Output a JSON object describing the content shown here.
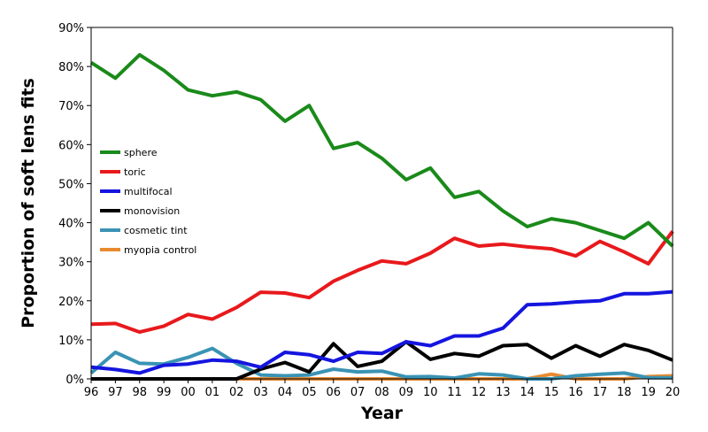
{
  "chart_data": {
    "type": "line",
    "xlabel": "Year",
    "ylabel": "Proportion of soft lens fits",
    "categories": [
      "96",
      "97",
      "98",
      "99",
      "00",
      "01",
      "02",
      "03",
      "04",
      "05",
      "06",
      "07",
      "08",
      "09",
      "10",
      "11",
      "12",
      "13",
      "14",
      "15",
      "16",
      "17",
      "18",
      "19",
      "20"
    ],
    "y_ticks": [
      "0%",
      "10%",
      "20%",
      "30%",
      "40%",
      "50%",
      "60%",
      "70%",
      "80%",
      "90%"
    ],
    "ylim": [
      0,
      90
    ],
    "grid": false,
    "legend_position": "left-middle",
    "series": [
      {
        "name": "sphere",
        "color": "#1a8a1a",
        "values": [
          81,
          77,
          83,
          79,
          74,
          72.5,
          73.5,
          71.5,
          66,
          70,
          59,
          60.5,
          56.5,
          51,
          54,
          46.5,
          48,
          43,
          39,
          41,
          40,
          38,
          36,
          40,
          34
        ]
      },
      {
        "name": "toric",
        "color": "#e8191c",
        "values": [
          14,
          14.2,
          12,
          13.5,
          16.5,
          15.3,
          18.3,
          22.2,
          22,
          20.8,
          25,
          27.8,
          30.2,
          29.5,
          32.2,
          36,
          34,
          34.5,
          33.8,
          33.3,
          31.5,
          35.2,
          32.5,
          29.5,
          37.8
        ]
      },
      {
        "name": "multifocal",
        "color": "#1515e0",
        "values": [
          3,
          2.4,
          1.5,
          3.5,
          3.8,
          4.8,
          4.5,
          3,
          6.8,
          6.2,
          4.5,
          6.8,
          6.5,
          9.5,
          8.5,
          11,
          11,
          13,
          19,
          19.2,
          19.7,
          20,
          21.8,
          21.8,
          22.3
        ]
      },
      {
        "name": "monovision",
        "color": "#000000",
        "values": [
          0,
          0,
          0,
          0,
          0,
          0,
          0,
          2.5,
          4.2,
          1.8,
          9,
          3.2,
          4.5,
          9.5,
          5,
          6.5,
          5.8,
          8.5,
          8.8,
          5.3,
          8.5,
          5.8,
          8.8,
          7.3,
          4.8
        ]
      },
      {
        "name": "cosmetic tint",
        "color": "#3a93b4",
        "values": [
          1.5,
          6.8,
          4,
          3.8,
          5.5,
          7.8,
          4,
          1,
          0.8,
          1,
          2.5,
          1.8,
          2,
          0.5,
          0.6,
          0.2,
          1.3,
          1,
          0,
          0,
          0.8,
          1.2,
          1.5,
          0.3,
          0.3
        ]
      },
      {
        "name": "myopia control",
        "color": "#e88a30",
        "values": [
          0,
          0,
          0,
          0,
          0,
          0,
          0,
          0,
          0,
          0,
          0,
          0,
          0,
          0,
          0,
          0,
          0,
          0,
          0,
          1.2,
          0,
          0,
          0,
          0.6,
          0.8
        ]
      }
    ]
  }
}
